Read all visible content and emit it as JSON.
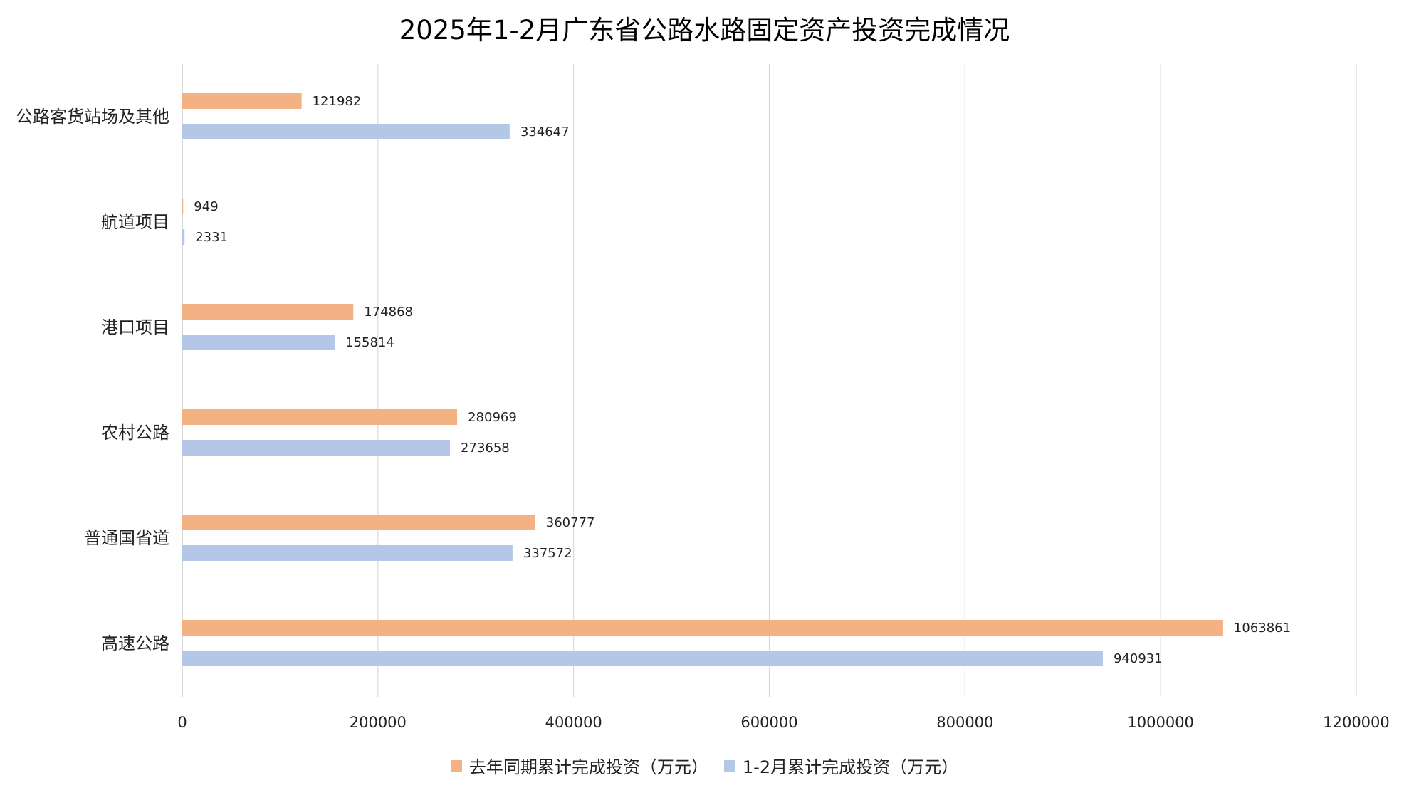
{
  "chart_data": {
    "type": "bar",
    "orientation": "horizontal",
    "title": "2025年1-2月广东省公路水路固定资产投资完成情况",
    "categories": [
      "公路客货站场及其他",
      "航道项目",
      "港口项目",
      "农村公路",
      "普通国省道",
      "高速公路"
    ],
    "series": [
      {
        "name": "去年同期累计完成投资（万元）",
        "color": "#F4B183",
        "values": [
          121982,
          949,
          174868,
          280969,
          360777,
          1063861
        ]
      },
      {
        "name": "1-2月累计完成投资（万元）",
        "color": "#B4C7E7",
        "values": [
          334647,
          2331,
          155814,
          273658,
          337572,
          940931
        ]
      }
    ],
    "xlim": [
      0,
      1200000
    ],
    "xticks": [
      0,
      200000,
      400000,
      600000,
      800000,
      1000000,
      1200000
    ],
    "grid": true,
    "legend": "bottom",
    "data_labels": true
  }
}
